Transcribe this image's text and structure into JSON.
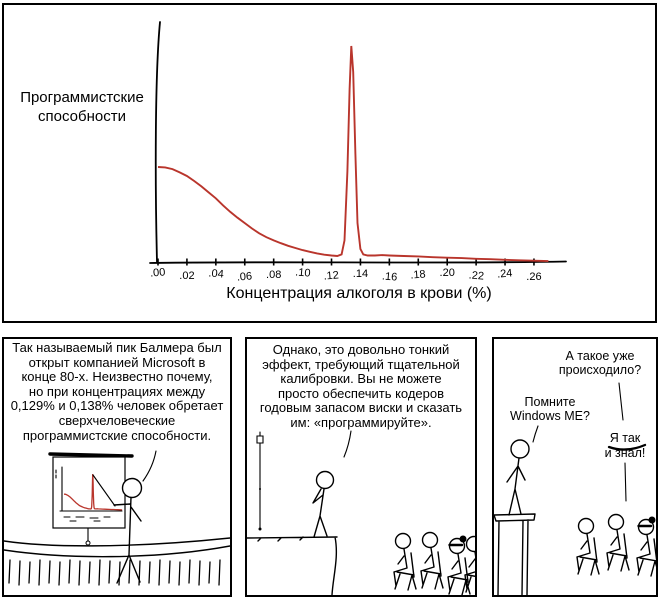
{
  "chart_data": {
    "type": "line",
    "title": "",
    "xlabel": "Концентрация алкоголя в крови (%)",
    "ylabel": "Программистские\nспособности",
    "x_ticks": [
      ".00",
      ".02",
      ".04",
      ".06",
      ".08",
      ".10",
      ".12",
      ".14",
      ".16",
      ".18",
      ".20",
      ".22",
      ".24",
      ".26"
    ],
    "xlim": [
      0,
      0.275
    ],
    "ylim": [
      0,
      1.05
    ],
    "grid": false,
    "legend": "none",
    "line_color": "#b9352c",
    "peak_location_x": 0.1337,
    "series": [
      {
        "name": "Программистские способности",
        "x": [
          0.0,
          0.005,
          0.01,
          0.015,
          0.02,
          0.025,
          0.03,
          0.035,
          0.04,
          0.045,
          0.05,
          0.055,
          0.06,
          0.065,
          0.07,
          0.075,
          0.08,
          0.085,
          0.09,
          0.095,
          0.1,
          0.105,
          0.11,
          0.115,
          0.12,
          0.124,
          0.127,
          0.129,
          0.131,
          0.1325,
          0.1337,
          0.135,
          0.1365,
          0.138,
          0.14,
          0.142,
          0.145,
          0.15,
          0.155,
          0.16,
          0.17,
          0.18,
          0.19,
          0.2,
          0.21,
          0.22,
          0.23,
          0.24,
          0.25,
          0.26,
          0.27
        ],
        "y": [
          0.44,
          0.438,
          0.43,
          0.415,
          0.398,
          0.375,
          0.35,
          0.322,
          0.295,
          0.262,
          0.232,
          0.205,
          0.18,
          0.155,
          0.133,
          0.115,
          0.1,
          0.087,
          0.075,
          0.065,
          0.055,
          0.047,
          0.04,
          0.034,
          0.03,
          0.028,
          0.035,
          0.1,
          0.42,
          0.8,
          1.0,
          0.88,
          0.5,
          0.18,
          0.06,
          0.035,
          0.03,
          0.03,
          0.032,
          0.03,
          0.028,
          0.026,
          0.022,
          0.02,
          0.018,
          0.015,
          0.013,
          0.01,
          0.008,
          0.006,
          0.004
        ]
      }
    ]
  },
  "panels": {
    "panel1": {
      "caption": "Так называемый пик Балмера был\nоткрыт компанией Microsoft в\nконце 80-х. Неизвестно почему,\nно при концентрациях между\n0,129% и 0,138% человек обретает\nсверхчеловеческие\nпрограммистские способности."
    },
    "panel2": {
      "caption": "Однако, это довольно тонкий\nэффект, требующий тщательной\nкалибровки. Вы не можете\nпросто обеспечить кодеров\nгодовым запасом виски и сказать\nим: «программируйте»."
    },
    "panel3": {
      "audience_question": "А такое уже\nпроисходило?",
      "presenter_reply": "Помните\nWindows ME?",
      "audience_exclaim": "Я так\nи знал!"
    }
  }
}
